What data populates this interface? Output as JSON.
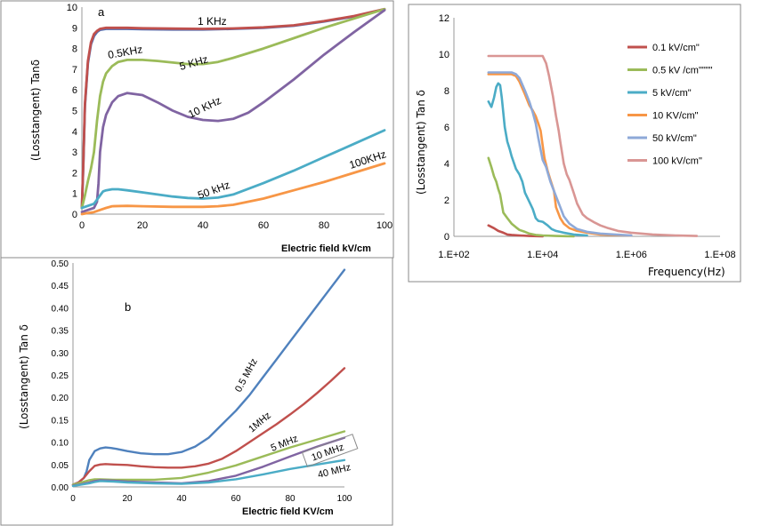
{
  "chart_data": [
    {
      "id": "a",
      "type": "line",
      "panel_label": "a",
      "xlabel": "Electric field kV/cm",
      "ylabel": "(Losstangent) Tanδ",
      "xlim": [
        0,
        100
      ],
      "ylim": [
        0,
        10
      ],
      "xticks": [
        "0",
        "20",
        "40",
        "60",
        "80",
        "100"
      ],
      "yticks": [
        "0",
        "1",
        "2",
        "3",
        "4",
        "5",
        "6",
        "7",
        "8",
        "9",
        "10"
      ],
      "series": [
        {
          "name": "1 KHz",
          "color": "#4F6FB5",
          "x": [
            0,
            0.5,
            1,
            2,
            3,
            4,
            5,
            6,
            8,
            10,
            15,
            20,
            30,
            40,
            50,
            60,
            70,
            80,
            90,
            100
          ],
          "y": [
            0.3,
            2.5,
            5.2,
            7.3,
            8.2,
            8.6,
            8.8,
            8.9,
            8.95,
            8.95,
            8.95,
            8.93,
            8.92,
            8.92,
            8.95,
            9.0,
            9.1,
            9.3,
            9.55,
            9.9
          ]
        },
        {
          "name": "",
          "color": "#C0504D",
          "x": [
            0,
            0.5,
            1,
            2,
            3,
            4,
            5,
            6,
            8,
            10,
            15,
            20,
            30,
            40,
            50,
            60,
            70,
            80,
            90,
            100
          ],
          "y": [
            0.3,
            2.6,
            5.3,
            7.4,
            8.3,
            8.7,
            8.85,
            8.95,
            9.0,
            9.0,
            9.0,
            8.98,
            8.96,
            8.95,
            8.97,
            9.02,
            9.12,
            9.32,
            9.57,
            9.9
          ]
        },
        {
          "name": "0.5KHz",
          "color": "#9BBB59",
          "x": [
            0,
            1,
            2,
            3,
            4,
            5,
            6,
            7,
            8,
            10,
            12,
            15,
            20,
            25,
            30,
            35,
            40,
            45,
            50,
            60,
            70,
            80,
            90,
            100
          ],
          "y": [
            0.3,
            0.9,
            1.6,
            2.2,
            3.0,
            4.5,
            5.7,
            6.4,
            6.8,
            7.15,
            7.35,
            7.45,
            7.45,
            7.4,
            7.32,
            7.25,
            7.25,
            7.35,
            7.55,
            8.0,
            8.5,
            9.0,
            9.45,
            9.9
          ]
        },
        {
          "name": "10 KHz",
          "color": "#8064A2",
          "x": [
            0,
            2,
            4,
            5,
            5.5,
            6,
            7,
            8,
            10,
            12,
            15,
            20,
            25,
            30,
            35,
            40,
            45,
            50,
            55,
            60,
            70,
            80,
            90,
            100
          ],
          "y": [
            0.1,
            0.2,
            0.3,
            0.6,
            1.5,
            3.0,
            4.2,
            4.8,
            5.4,
            5.7,
            5.85,
            5.75,
            5.4,
            5.0,
            4.7,
            4.55,
            4.5,
            4.6,
            4.9,
            5.4,
            6.5,
            7.7,
            8.8,
            9.85
          ]
        },
        {
          "name": "50 kHz",
          "color": "#4BACC6",
          "x": [
            0,
            2,
            4,
            5,
            6,
            7,
            8,
            10,
            12,
            15,
            20,
            25,
            30,
            35,
            40,
            45,
            50,
            60,
            70,
            80,
            90,
            100
          ],
          "y": [
            0.3,
            0.4,
            0.5,
            0.7,
            0.9,
            1.1,
            1.15,
            1.2,
            1.2,
            1.15,
            1.05,
            0.95,
            0.85,
            0.78,
            0.75,
            0.8,
            0.95,
            1.5,
            2.1,
            2.75,
            3.4,
            4.05
          ]
        },
        {
          "name": "100KHz",
          "color": "#F79646",
          "x": [
            0,
            2,
            4,
            6,
            8,
            10,
            15,
            20,
            30,
            40,
            45,
            50,
            60,
            70,
            80,
            90,
            100
          ],
          "y": [
            0.0,
            0.05,
            0.1,
            0.2,
            0.3,
            0.38,
            0.4,
            0.38,
            0.35,
            0.35,
            0.38,
            0.45,
            0.75,
            1.15,
            1.55,
            2.0,
            2.45
          ]
        }
      ]
    },
    {
      "id": "b",
      "type": "line",
      "panel_label": "b",
      "xlabel": "Electric field KV/cm",
      "ylabel": "(Losstangent) Tan δ",
      "xlim": [
        0,
        100
      ],
      "ylim": [
        0,
        0.5
      ],
      "xticks": [
        "0",
        "20",
        "40",
        "60",
        "80",
        "100"
      ],
      "yticks": [
        "0.00",
        "0.05",
        "0.10",
        "0.15",
        "0.20",
        "0.25",
        "0.30",
        "0.35",
        "0.40",
        "0.45",
        "0.50"
      ],
      "series": [
        {
          "name": "0.5 MHz",
          "color": "#4F81BD",
          "x": [
            0,
            2,
            4,
            5,
            6,
            8,
            10,
            12,
            14,
            16,
            20,
            25,
            30,
            35,
            40,
            45,
            50,
            55,
            60,
            65,
            70,
            75,
            80,
            85,
            90,
            95,
            100
          ],
          "y": [
            0.005,
            0.01,
            0.02,
            0.035,
            0.06,
            0.08,
            0.086,
            0.088,
            0.087,
            0.085,
            0.08,
            0.075,
            0.073,
            0.073,
            0.078,
            0.09,
            0.11,
            0.14,
            0.17,
            0.205,
            0.245,
            0.285,
            0.325,
            0.365,
            0.405,
            0.445,
            0.485
          ]
        },
        {
          "name": "1MHz",
          "color": "#C0504D",
          "x": [
            0,
            2,
            4,
            6,
            8,
            10,
            12,
            15,
            20,
            25,
            30,
            35,
            40,
            45,
            50,
            55,
            60,
            65,
            70,
            75,
            80,
            85,
            90,
            95,
            100
          ],
          "y": [
            0.005,
            0.01,
            0.02,
            0.035,
            0.047,
            0.05,
            0.051,
            0.05,
            0.049,
            0.046,
            0.044,
            0.043,
            0.043,
            0.046,
            0.052,
            0.063,
            0.08,
            0.1,
            0.12,
            0.14,
            0.162,
            0.185,
            0.21,
            0.237,
            0.265
          ]
        },
        {
          "name": "5 MHz",
          "color": "#9BBB59",
          "x": [
            0,
            3,
            6,
            8,
            10,
            15,
            20,
            30,
            40,
            50,
            60,
            70,
            80,
            90,
            100
          ],
          "y": [
            0.005,
            0.01,
            0.015,
            0.017,
            0.017,
            0.016,
            0.016,
            0.016,
            0.02,
            0.032,
            0.048,
            0.068,
            0.088,
            0.106,
            0.124
          ]
        },
        {
          "name": "10 MHz",
          "color": "#8064A2",
          "x": [
            0,
            3,
            6,
            8,
            10,
            15,
            20,
            30,
            40,
            50,
            60,
            70,
            80,
            90,
            100
          ],
          "y": [
            0.003,
            0.006,
            0.01,
            0.013,
            0.015,
            0.014,
            0.012,
            0.01,
            0.008,
            0.013,
            0.025,
            0.045,
            0.068,
            0.09,
            0.11
          ]
        },
        {
          "name": "40 MHz",
          "color": "#4BACC6",
          "x": [
            0,
            3,
            6,
            8,
            10,
            15,
            20,
            30,
            40,
            50,
            60,
            70,
            80,
            90,
            100
          ],
          "y": [
            0.002,
            0.005,
            0.008,
            0.011,
            0.013,
            0.012,
            0.01,
            0.008,
            0.007,
            0.01,
            0.017,
            0.028,
            0.04,
            0.05,
            0.06
          ]
        }
      ]
    },
    {
      "id": "c",
      "type": "line",
      "xlabel": "Frequency(Hz)",
      "ylabel": "(Losstangent) Tan δ",
      "xscale": "log",
      "xlim": [
        100,
        100000000
      ],
      "ylim": [
        0,
        12
      ],
      "xticks": [
        "1.E+02",
        "1.E+04",
        "1.E+06",
        "1.E+08"
      ],
      "yticks": [
        "0",
        "2",
        "4",
        "6",
        "8",
        "10",
        "12"
      ],
      "legend": "right",
      "series": [
        {
          "name": "0.1 kV/cm\"",
          "color": "#C0504D",
          "x": [
            600,
            800,
            1000,
            1300,
            1600,
            2000,
            3000,
            5000,
            10000
          ],
          "y": [
            0.6,
            0.45,
            0.3,
            0.2,
            0.1,
            0.08,
            0.05,
            0.02,
            0.0
          ]
        },
        {
          "name": "0.5 kV /cm\"\"\"\"",
          "color": "#9BBB59",
          "x": [
            600,
            700,
            800,
            900,
            1000,
            1100,
            1300,
            1600,
            2000,
            2500,
            3000,
            4000,
            5000,
            7000,
            10000,
            20000,
            50000
          ],
          "y": [
            4.3,
            3.8,
            3.3,
            3.0,
            2.6,
            2.3,
            1.3,
            1.0,
            0.7,
            0.5,
            0.35,
            0.25,
            0.15,
            0.08,
            0.05,
            0.02,
            0.0
          ]
        },
        {
          "name": "5 kV/cm\"",
          "color": "#4BACC6",
          "x": [
            600,
            700,
            800,
            900,
            1000,
            1100,
            1200,
            1400,
            1600,
            1800,
            2000,
            2500,
            3000,
            3500,
            4000,
            5000,
            6000,
            7000,
            8000,
            10000,
            13000,
            16000,
            20000,
            30000,
            50000,
            100000
          ],
          "y": [
            7.4,
            7.1,
            7.6,
            8.2,
            8.4,
            8.3,
            7.6,
            6.0,
            5.2,
            4.8,
            4.4,
            3.7,
            3.4,
            3.0,
            2.4,
            1.9,
            1.5,
            1.0,
            0.85,
            0.8,
            0.6,
            0.4,
            0.3,
            0.2,
            0.1,
            0.05
          ]
        },
        {
          "name": "10 KV/cm\"",
          "color": "#F79646",
          "x": [
            600,
            1000,
            1500,
            2000,
            2500,
            3000,
            4000,
            5000,
            6000,
            7000,
            8000,
            9000,
            10000,
            11000,
            13000,
            15000,
            18000,
            20000,
            25000,
            30000,
            40000,
            60000,
            100000,
            200000,
            1000000
          ],
          "y": [
            8.9,
            8.9,
            8.9,
            8.9,
            8.8,
            8.5,
            7.8,
            7.2,
            6.9,
            6.6,
            6.2,
            5.8,
            5.0,
            4.3,
            3.6,
            3.1,
            2.5,
            1.6,
            1.0,
            0.7,
            0.45,
            0.3,
            0.2,
            0.1,
            0.05
          ]
        },
        {
          "name": "50 kV/cm\"",
          "color": "#8EA9D8",
          "x": [
            600,
            1000,
            1500,
            2000,
            2500,
            3000,
            4000,
            5000,
            6000,
            7000,
            8000,
            10000,
            12000,
            15000,
            20000,
            25000,
            30000,
            40000,
            60000,
            100000,
            200000,
            1000000
          ],
          "y": [
            9.0,
            9.0,
            9.0,
            9.0,
            8.9,
            8.7,
            8.0,
            7.4,
            6.8,
            6.2,
            5.4,
            4.2,
            3.8,
            3.0,
            2.2,
            1.6,
            1.1,
            0.7,
            0.4,
            0.25,
            0.15,
            0.05
          ]
        },
        {
          "name": "100 kV/cm\"",
          "color": "#D99694",
          "x": [
            600,
            1000,
            2000,
            5000,
            10000,
            12000,
            14000,
            17000,
            20000,
            23000,
            25000,
            30000,
            35000,
            40000,
            50000,
            60000,
            80000,
            100000,
            150000,
            200000,
            300000,
            500000,
            1000000,
            3000000,
            10000000,
            30000000
          ],
          "y": [
            9.9,
            9.9,
            9.9,
            9.9,
            9.9,
            9.5,
            8.8,
            7.7,
            6.6,
            5.8,
            5.2,
            4.0,
            3.4,
            3.1,
            2.4,
            1.8,
            1.2,
            1.0,
            0.75,
            0.6,
            0.45,
            0.3,
            0.2,
            0.1,
            0.05,
            0.02
          ]
        }
      ]
    }
  ],
  "curve_labels": {
    "a": [
      "1 KHz",
      "0.5KHz",
      "5 KHz",
      "10 KHz",
      "50 kHz",
      "100KHz"
    ],
    "b": [
      "0.5 MHz",
      "1MHz",
      "5 MHz",
      "10 MHz",
      "40 MHz"
    ]
  }
}
